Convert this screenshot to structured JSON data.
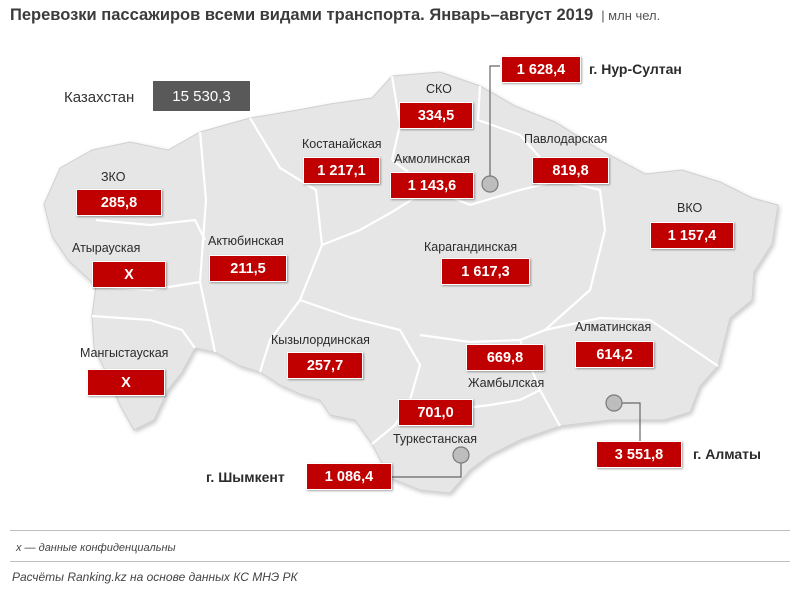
{
  "title": "Перевозки пассажиров всеми видами транспорта. Январь–август 2019",
  "unit": "| млн чел.",
  "total": {
    "label": "Казахстан",
    "value": "15 530,3"
  },
  "regions": {
    "sko": {
      "name": "СКО",
      "value": "334,5"
    },
    "kostanay": {
      "name": "Костанайская",
      "value": "1 217,1"
    },
    "akmola": {
      "name": "Акмолинская",
      "value": "1 143,6"
    },
    "pavlodar": {
      "name": "Павлодарская",
      "value": "819,8"
    },
    "zko": {
      "name": "ЗКО",
      "value": "285,8"
    },
    "atyrau": {
      "name": "Атырауская",
      "value": "X"
    },
    "aktobe": {
      "name": "Актюбинская",
      "value": "211,5"
    },
    "karaganda": {
      "name": "Карагандинская",
      "value": "1 617,3"
    },
    "vko": {
      "name": "ВКО",
      "value": "1 157,4"
    },
    "mangystau": {
      "name": "Мангыстауская",
      "value": "X"
    },
    "kyzylorda": {
      "name": "Кызылординская",
      "value": "257,7"
    },
    "zhambyl": {
      "name": "Жамбылская",
      "value": "669,8"
    },
    "almaty_reg": {
      "name": "Алматинская",
      "value": "614,2"
    },
    "turkestan": {
      "name": "Туркестанская",
      "value": "701,0"
    }
  },
  "cities": {
    "nursultan": {
      "name": "г. Нур-Султан",
      "value": "1 628,4"
    },
    "almaty": {
      "name": "г. Алматы",
      "value": "3 551,8"
    },
    "shymkent": {
      "name": "г. Шымкент",
      "value": "1 086,4"
    }
  },
  "note": "x — данные конфиденциальны",
  "source": "Расчёты Ranking.kz на основе данных  КС МНЭ РК",
  "colors": {
    "value_box": "#c00000",
    "total_box": "#595959",
    "map_fill": "#e6e6e6",
    "borders": "#ffffff"
  }
}
